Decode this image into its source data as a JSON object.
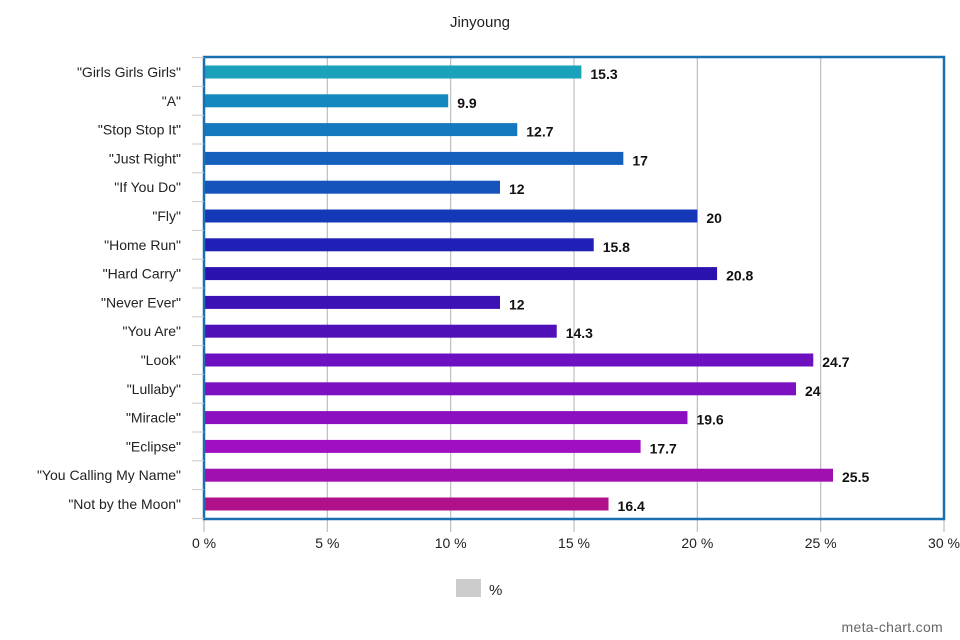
{
  "chart_data": {
    "type": "bar",
    "orientation": "horizontal",
    "title": "Jinyoung",
    "categories": [
      "\"Girls Girls Girls\"",
      "\"A\"",
      "\"Stop Stop It\"",
      "\"Just Right\"",
      "\"If You Do\"",
      "\"Fly\"",
      "\"Home Run\"",
      "\"Hard Carry\"",
      "\"Never Ever\"",
      "\"You Are\"",
      "\"Look\"",
      "\"Lullaby\"",
      "\"Miracle\"",
      "\"Eclipse\"",
      "\"You Calling My Name\"",
      "\"Not by the Moon\""
    ],
    "series": [
      {
        "name": "%",
        "values": [
          15.3,
          9.9,
          12.7,
          17,
          12,
          20,
          15.8,
          20.8,
          12,
          14.3,
          24.7,
          24,
          19.6,
          17.7,
          25.5,
          16.4
        ],
        "value_labels": [
          "15.3",
          "9.9",
          "12.7",
          "17",
          "12",
          "20",
          "15.8",
          "20.8",
          "12",
          "14.3",
          "24.7",
          "24",
          "19.6",
          "17.7",
          "25.5",
          "16.4"
        ],
        "colors": [
          "#1aa2bd",
          "#1588bf",
          "#1579c0",
          "#1560bd",
          "#1554bb",
          "#1538b8",
          "#2020b6",
          "#2a12ae",
          "#3c12b4",
          "#5010b8",
          "#6c10c0",
          "#7d10c0",
          "#8c10c0",
          "#a010c0",
          "#a010b0",
          "#b0108a"
        ]
      }
    ],
    "xlim": [
      0,
      30
    ],
    "x_ticks": [
      "0 %",
      "5 %",
      "10 %",
      "15 %",
      "20 %",
      "25 %",
      "30 %"
    ],
    "x_tick_values": [
      0,
      5,
      10,
      15,
      20,
      25,
      30
    ],
    "grid": true,
    "legend": {
      "label": "%",
      "swatch_color": "#cccccc",
      "position": "bottom-center"
    },
    "frame_color": "#1a6fb0",
    "watermark": "meta-chart.com"
  }
}
